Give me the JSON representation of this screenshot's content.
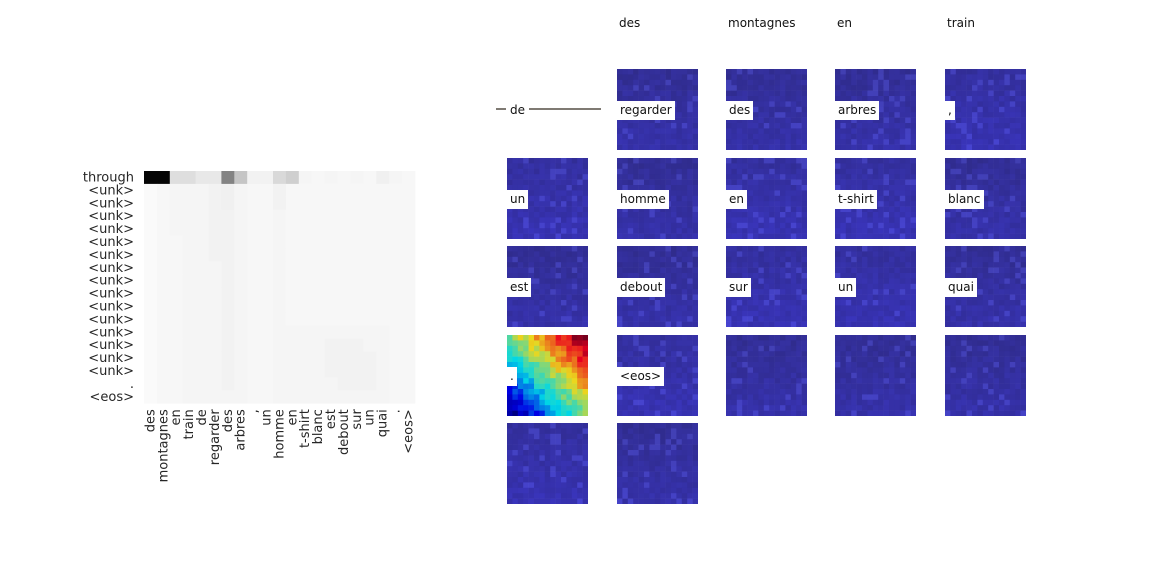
{
  "chart_data": [
    {
      "type": "heatmap",
      "title": "",
      "xlabel": "",
      "ylabel": "",
      "x_categories": [
        "des",
        "montagnes",
        "en",
        "train",
        "de",
        "regarder",
        "des",
        "arbres",
        ",",
        "un",
        "homme",
        "en",
        "t-shirt",
        "blanc",
        "est",
        "debout",
        "sur",
        "un",
        "quai",
        ".",
        "<eos>"
      ],
      "y_categories": [
        "through",
        "<unk>",
        "<unk>",
        "<unk>",
        "<unk>",
        "<unk>",
        "<unk>",
        "<unk>",
        "<unk>",
        "<unk>",
        "<unk>",
        "<unk>",
        "<unk>",
        "<unk>",
        "<unk>",
        "<unk>",
        ".",
        "<eos>"
      ],
      "colormap": "Greys",
      "value_range": [
        0,
        1
      ],
      "values": [
        [
          0.98,
          0.98,
          0.12,
          0.12,
          0.08,
          0.08,
          0.48,
          0.22,
          0.04,
          0.04,
          0.14,
          0.18,
          0.03,
          0.02,
          0.03,
          0.02,
          0.03,
          0.02,
          0.05,
          0.03,
          0.02
        ],
        [
          0.01,
          0.02,
          0.03,
          0.03,
          0.03,
          0.04,
          0.05,
          0.03,
          0.02,
          0.02,
          0.04,
          0.02,
          0.02,
          0.02,
          0.02,
          0.02,
          0.02,
          0.02,
          0.02,
          0.02,
          0.02
        ],
        [
          0.01,
          0.02,
          0.03,
          0.03,
          0.03,
          0.04,
          0.05,
          0.03,
          0.02,
          0.02,
          0.04,
          0.02,
          0.02,
          0.02,
          0.02,
          0.02,
          0.02,
          0.02,
          0.02,
          0.02,
          0.02
        ],
        [
          0.01,
          0.02,
          0.03,
          0.03,
          0.03,
          0.04,
          0.04,
          0.03,
          0.02,
          0.02,
          0.03,
          0.02,
          0.02,
          0.02,
          0.02,
          0.02,
          0.02,
          0.02,
          0.02,
          0.02,
          0.02
        ],
        [
          0.01,
          0.02,
          0.03,
          0.03,
          0.03,
          0.04,
          0.04,
          0.03,
          0.02,
          0.02,
          0.03,
          0.02,
          0.02,
          0.02,
          0.02,
          0.02,
          0.02,
          0.02,
          0.02,
          0.02,
          0.02
        ],
        [
          0.01,
          0.02,
          0.02,
          0.03,
          0.03,
          0.04,
          0.04,
          0.03,
          0.02,
          0.02,
          0.03,
          0.02,
          0.02,
          0.02,
          0.02,
          0.02,
          0.02,
          0.02,
          0.02,
          0.02,
          0.02
        ],
        [
          0.01,
          0.02,
          0.02,
          0.03,
          0.03,
          0.04,
          0.04,
          0.03,
          0.02,
          0.02,
          0.03,
          0.02,
          0.02,
          0.02,
          0.02,
          0.02,
          0.02,
          0.02,
          0.02,
          0.02,
          0.02
        ],
        [
          0.01,
          0.02,
          0.02,
          0.03,
          0.03,
          0.03,
          0.04,
          0.03,
          0.02,
          0.02,
          0.03,
          0.02,
          0.02,
          0.02,
          0.02,
          0.02,
          0.02,
          0.02,
          0.02,
          0.02,
          0.02
        ],
        [
          0.01,
          0.02,
          0.02,
          0.03,
          0.03,
          0.03,
          0.04,
          0.03,
          0.02,
          0.02,
          0.03,
          0.02,
          0.02,
          0.02,
          0.02,
          0.02,
          0.02,
          0.02,
          0.02,
          0.02,
          0.02
        ],
        [
          0.01,
          0.02,
          0.02,
          0.03,
          0.03,
          0.03,
          0.04,
          0.03,
          0.02,
          0.02,
          0.03,
          0.02,
          0.02,
          0.02,
          0.02,
          0.02,
          0.02,
          0.02,
          0.02,
          0.02,
          0.02
        ],
        [
          0.01,
          0.02,
          0.02,
          0.03,
          0.03,
          0.03,
          0.04,
          0.03,
          0.02,
          0.02,
          0.03,
          0.02,
          0.02,
          0.02,
          0.02,
          0.02,
          0.02,
          0.02,
          0.02,
          0.02,
          0.02
        ],
        [
          0.01,
          0.02,
          0.02,
          0.03,
          0.03,
          0.03,
          0.04,
          0.03,
          0.02,
          0.02,
          0.03,
          0.02,
          0.02,
          0.02,
          0.02,
          0.02,
          0.02,
          0.02,
          0.02,
          0.02,
          0.02
        ],
        [
          0.01,
          0.02,
          0.02,
          0.03,
          0.03,
          0.03,
          0.04,
          0.03,
          0.02,
          0.02,
          0.03,
          0.03,
          0.03,
          0.03,
          0.03,
          0.03,
          0.03,
          0.03,
          0.03,
          0.02,
          0.02
        ],
        [
          0.01,
          0.02,
          0.02,
          0.03,
          0.03,
          0.03,
          0.04,
          0.03,
          0.02,
          0.02,
          0.03,
          0.03,
          0.03,
          0.03,
          0.04,
          0.04,
          0.04,
          0.03,
          0.03,
          0.02,
          0.02
        ],
        [
          0.01,
          0.02,
          0.02,
          0.03,
          0.03,
          0.03,
          0.04,
          0.03,
          0.02,
          0.02,
          0.03,
          0.03,
          0.03,
          0.03,
          0.04,
          0.04,
          0.04,
          0.04,
          0.03,
          0.02,
          0.02
        ],
        [
          0.01,
          0.02,
          0.02,
          0.03,
          0.03,
          0.03,
          0.04,
          0.03,
          0.02,
          0.02,
          0.03,
          0.03,
          0.03,
          0.03,
          0.04,
          0.04,
          0.04,
          0.04,
          0.03,
          0.02,
          0.02
        ],
        [
          0.01,
          0.02,
          0.02,
          0.03,
          0.03,
          0.03,
          0.04,
          0.03,
          0.02,
          0.02,
          0.03,
          0.03,
          0.03,
          0.03,
          0.03,
          0.04,
          0.04,
          0.04,
          0.03,
          0.02,
          0.02
        ],
        [
          0.01,
          0.02,
          0.02,
          0.03,
          0.03,
          0.03,
          0.03,
          0.03,
          0.02,
          0.02,
          0.03,
          0.03,
          0.03,
          0.03,
          0.03,
          0.03,
          0.03,
          0.03,
          0.03,
          0.02,
          0.02
        ]
      ]
    },
    {
      "type": "image-grid",
      "column_headers": [
        "des",
        "montagnes",
        "en",
        "train"
      ],
      "legend_label": "de",
      "tiles": [
        {
          "label": null,
          "style": "legend"
        },
        {
          "label": "regarder",
          "style": "blue"
        },
        {
          "label": "des",
          "style": "blue"
        },
        {
          "label": "arbres",
          "style": "blue"
        },
        {
          "label": ",",
          "style": "blue"
        },
        {
          "label": "un",
          "style": "blue"
        },
        {
          "label": "homme",
          "style": "blue"
        },
        {
          "label": "en",
          "style": "blue"
        },
        {
          "label": "t-shirt",
          "style": "blue"
        },
        {
          "label": "blanc",
          "style": "blue"
        },
        {
          "label": "est",
          "style": "blue"
        },
        {
          "label": "debout",
          "style": "blue"
        },
        {
          "label": "sur",
          "style": "blue"
        },
        {
          "label": "un",
          "style": "blue"
        },
        {
          "label": "quai",
          "style": "blue"
        },
        {
          "label": ".",
          "style": "jet"
        },
        {
          "label": "<eos>",
          "style": "blue"
        },
        {
          "label": null,
          "style": "blue"
        },
        {
          "label": null,
          "style": "blue"
        },
        {
          "label": null,
          "style": "blue"
        },
        {
          "label": null,
          "style": "blue"
        },
        {
          "label": null,
          "style": "blue"
        }
      ]
    }
  ],
  "colors": {
    "tile_base": "#322f8a",
    "tile_bright": "#3a3ad0",
    "legend_line": "#7f7a73",
    "text": "#262626"
  }
}
